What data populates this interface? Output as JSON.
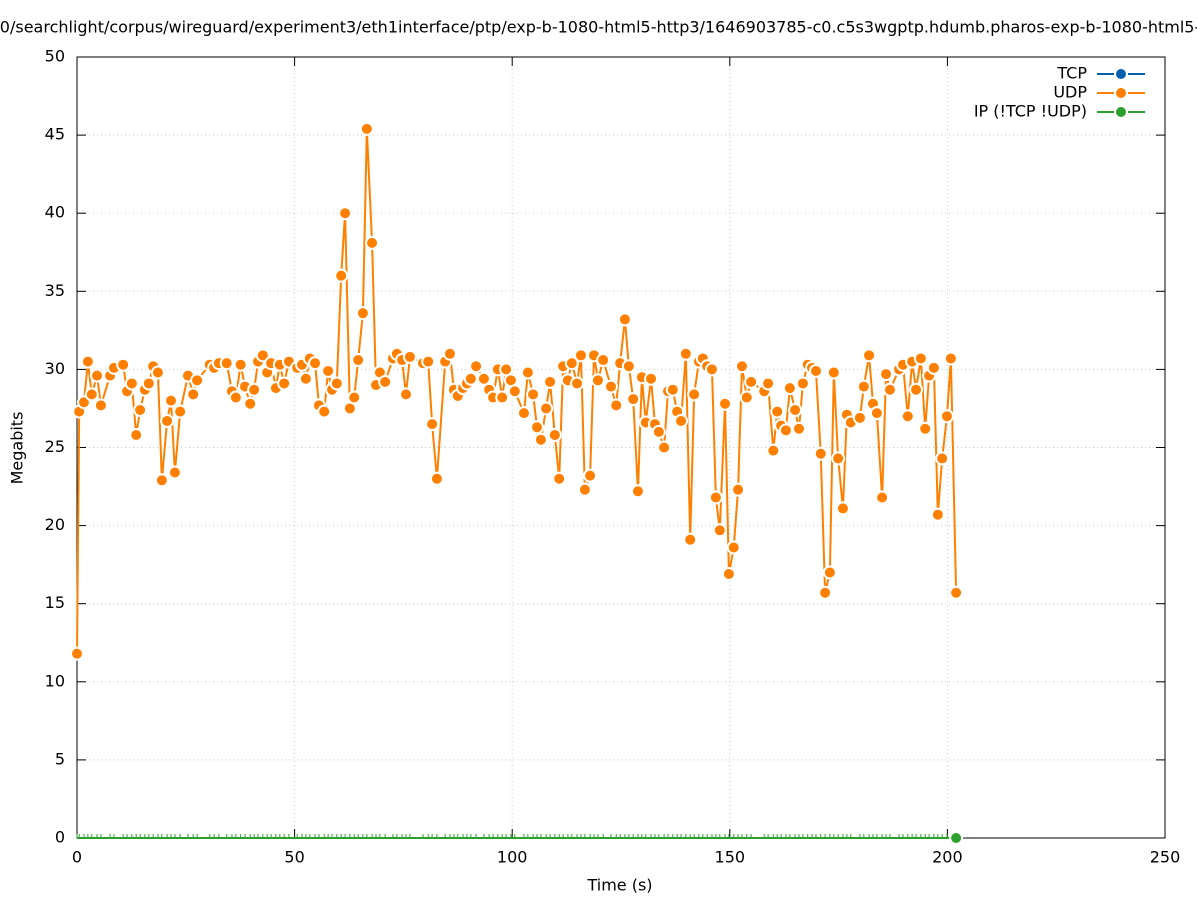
{
  "chart_data": {
    "type": "line",
    "title": "0/searchlight/corpus/wireguard/experiment3/eth1interface/ptp/exp-b-1080-html5-http3/1646903785-c0.c5s3wgptp.hdumb.pharos-exp-b-1080-html5-",
    "x_label": "Time (s)",
    "y_label": "Megabits",
    "xlim": [
      0,
      250
    ],
    "xticks": [
      0,
      50,
      100,
      150,
      200,
      250
    ],
    "ylim": [
      0,
      50
    ],
    "yticks": [
      0,
      5,
      10,
      15,
      20,
      25,
      30,
      35,
      40,
      45,
      50
    ],
    "grid": true,
    "legend": "top-right",
    "x": [
      0,
      0.5,
      1.6,
      2.5,
      3.4,
      4.6,
      5.5,
      7.6,
      8.5,
      10.6,
      11.5,
      12.6,
      13.6,
      14.5,
      15.6,
      16.5,
      17.5,
      18.6,
      19.5,
      20.7,
      21.6,
      22.5,
      23.7,
      25.5,
      26.7,
      27.6,
      30.5,
      31.5,
      32.6,
      34.4,
      35.6,
      36.5,
      37.6,
      38.6,
      39.8,
      40.7,
      41.6,
      42.7,
      43.7,
      44.6,
      45.7,
      46.6,
      47.6,
      48.7,
      50.6,
      51.7,
      52.6,
      53.5,
      54.7,
      55.6,
      56.8,
      57.7,
      58.6,
      59.7,
      60.7,
      61.6,
      62.7,
      63.7,
      64.6,
      65.7,
      66.6,
      67.8,
      68.7,
      69.6,
      70.8,
      72.6,
      73.5,
      74.7,
      75.6,
      76.5,
      79.5,
      80.7,
      81.6,
      82.7,
      84.6,
      85.7,
      86.6,
      87.5,
      88.7,
      89.6,
      90.5,
      91.7,
      93.5,
      94.7,
      95.6,
      96.7,
      97.7,
      98.6,
      99.7,
      100.6,
      102.7,
      103.6,
      104.8,
      105.7,
      106.6,
      107.8,
      108.7,
      109.8,
      110.8,
      111.7,
      112.8,
      113.7,
      114.9,
      115.8,
      116.7,
      117.9,
      118.8,
      119.7,
      120.9,
      122.7,
      123.9,
      124.8,
      125.9,
      126.8,
      127.8,
      128.9,
      129.8,
      130.7,
      131.9,
      132.8,
      133.7,
      134.9,
      135.8,
      136.9,
      137.9,
      138.8,
      139.9,
      140.9,
      141.8,
      142.9,
      143.8,
      144.8,
      145.9,
      146.8,
      147.7,
      148.9,
      149.8,
      150.9,
      151.9,
      152.8,
      153.9,
      154.9,
      157.9,
      158.8,
      160.0,
      160.9,
      161.8,
      162.9,
      163.8,
      165.0,
      165.9,
      166.8,
      167.9,
      168.9,
      169.8,
      170.9,
      171.9,
      173.0,
      173.9,
      174.9,
      176.0,
      176.9,
      177.8,
      179.9,
      180.8,
      182.0,
      182.9,
      183.8,
      185.0,
      185.9,
      186.8,
      188.9,
      189.8,
      190.9,
      191.9,
      192.8,
      193.9,
      194.9,
      195.8,
      196.9,
      197.8,
      198.8,
      199.9,
      200.8,
      202.0
    ],
    "series": [
      {
        "name": "TCP",
        "color": "#0060ad",
        "values": [
          null,
          null,
          null,
          null,
          null,
          null,
          null,
          null,
          null,
          null,
          null,
          null,
          null,
          null,
          null,
          null,
          null,
          null,
          null,
          null,
          null,
          null,
          null,
          null,
          null,
          null,
          null,
          null,
          null,
          null,
          null,
          null,
          null,
          null,
          null,
          null,
          null,
          null,
          null,
          null,
          null,
          null,
          null,
          null,
          null,
          null,
          null,
          null,
          null,
          null,
          null,
          null,
          null,
          null,
          null,
          null,
          null,
          null,
          null,
          null,
          null,
          null,
          null,
          null,
          null,
          null,
          null,
          null,
          null,
          null,
          null,
          null,
          null,
          null,
          null,
          null,
          null,
          null,
          null,
          null,
          null,
          null,
          null,
          null,
          null,
          null,
          null,
          null,
          null,
          null,
          null,
          null,
          null,
          null,
          null,
          null,
          null,
          null,
          null,
          null,
          null,
          null,
          null,
          null,
          null,
          null,
          null,
          null,
          null,
          null,
          null,
          null,
          null,
          null,
          null,
          null,
          null,
          null,
          null,
          null,
          null,
          null,
          null,
          null,
          null,
          null,
          null,
          null,
          null,
          null,
          null,
          null,
          null,
          null,
          null,
          null,
          null,
          null,
          null,
          null,
          null,
          null,
          null,
          null,
          null,
          null,
          null,
          null,
          null,
          null,
          null,
          null,
          null,
          null,
          null,
          null,
          null,
          null,
          null,
          null,
          null,
          null,
          null,
          null,
          null,
          null,
          null,
          null,
          null,
          null,
          null,
          null,
          null,
          null,
          null,
          null,
          null,
          null,
          null,
          null,
          null,
          null,
          null,
          null,
          null
        ]
      },
      {
        "name": "UDP",
        "color": "#ff8000",
        "values": [
          11.8,
          27.3,
          27.9,
          30.5,
          28.4,
          29.6,
          27.7,
          29.6,
          30.1,
          30.3,
          28.6,
          29.1,
          25.8,
          27.4,
          28.7,
          29.1,
          30.2,
          29.8,
          22.9,
          26.7,
          28.0,
          23.4,
          27.3,
          29.6,
          28.4,
          29.3,
          30.3,
          30.1,
          30.4,
          30.4,
          28.6,
          28.2,
          30.3,
          28.9,
          27.8,
          28.7,
          30.5,
          30.9,
          29.8,
          30.4,
          28.8,
          30.3,
          29.1,
          30.5,
          30.1,
          30.3,
          29.4,
          30.7,
          30.4,
          27.7,
          27.3,
          29.9,
          28.7,
          29.1,
          36.0,
          40.0,
          27.5,
          28.2,
          30.6,
          33.6,
          45.4,
          38.1,
          29.0,
          29.8,
          29.2,
          30.7,
          31.0,
          30.6,
          28.4,
          30.8,
          30.4,
          30.5,
          26.5,
          23.0,
          30.5,
          31.0,
          28.7,
          28.3,
          28.8,
          29.1,
          29.4,
          30.2,
          29.4,
          28.7,
          28.2,
          30.0,
          28.2,
          30.0,
          29.3,
          28.6,
          27.2,
          29.8,
          28.4,
          26.3,
          25.5,
          27.5,
          29.2,
          25.8,
          23.0,
          30.2,
          29.3,
          30.4,
          29.1,
          30.9,
          22.3,
          23.2,
          30.9,
          29.3,
          30.6,
          28.9,
          27.7,
          30.4,
          33.2,
          30.2,
          28.1,
          22.2,
          29.5,
          26.6,
          29.4,
          26.5,
          26.0,
          25.0,
          28.6,
          28.7,
          27.3,
          26.7,
          31.0,
          19.1,
          28.4,
          30.5,
          30.7,
          30.2,
          30.0,
          21.8,
          19.7,
          27.8,
          16.9,
          18.6,
          22.3,
          30.2,
          28.2,
          29.2,
          28.6,
          29.1,
          24.8,
          27.3,
          26.4,
          26.1,
          28.8,
          27.4,
          26.2,
          29.1,
          30.3,
          30.1,
          29.9,
          24.6,
          15.7,
          17.0,
          29.8,
          24.3,
          21.1,
          27.1,
          26.6,
          26.9,
          28.9,
          30.9,
          27.8,
          27.2,
          21.8,
          29.7,
          28.7,
          30.0,
          30.3,
          27.0,
          30.5,
          28.7,
          30.7,
          26.2,
          29.6,
          30.1,
          20.7,
          24.3,
          27.0,
          30.7,
          15.7
        ]
      },
      {
        "name": "IP (!TCP  !UDP)",
        "color": "#2ca02c",
        "values": [
          0,
          0,
          0,
          0,
          0,
          0,
          0,
          0,
          0,
          0,
          0,
          0,
          0,
          0,
          0,
          0,
          0,
          0,
          0,
          0,
          0,
          0,
          0,
          0,
          0,
          0,
          0,
          0,
          0,
          0,
          0,
          0,
          0,
          0,
          0,
          0,
          0,
          0,
          0,
          0,
          0,
          0,
          0,
          0,
          0,
          0,
          0,
          0,
          0,
          0,
          0,
          0,
          0,
          0,
          0,
          0,
          0,
          0,
          0,
          0,
          0,
          0,
          0,
          0,
          0,
          0,
          0,
          0,
          0,
          0,
          0,
          0,
          0,
          0,
          0,
          0,
          0,
          0,
          0,
          0,
          0,
          0,
          0,
          0,
          0,
          0,
          0,
          0,
          0,
          0,
          0,
          0,
          0,
          0,
          0,
          0,
          0,
          0,
          0,
          0,
          0,
          0,
          0,
          0,
          0,
          0,
          0,
          0,
          0,
          0,
          0,
          0,
          0,
          0,
          0,
          0,
          0,
          0,
          0,
          0,
          0,
          0,
          0,
          0,
          0,
          0,
          0,
          0,
          0,
          0,
          0,
          0,
          0,
          0,
          0,
          0,
          0,
          0,
          0,
          0,
          0,
          0,
          0,
          0,
          0,
          0,
          0,
          0,
          0,
          0,
          0,
          0,
          0,
          0,
          0,
          0,
          0,
          0,
          0,
          0,
          0,
          0,
          0,
          0,
          0,
          0,
          0,
          0,
          0,
          0,
          0,
          0,
          0,
          0,
          0,
          0,
          0,
          0,
          0,
          0,
          0,
          0,
          0,
          0,
          0
        ]
      }
    ]
  }
}
